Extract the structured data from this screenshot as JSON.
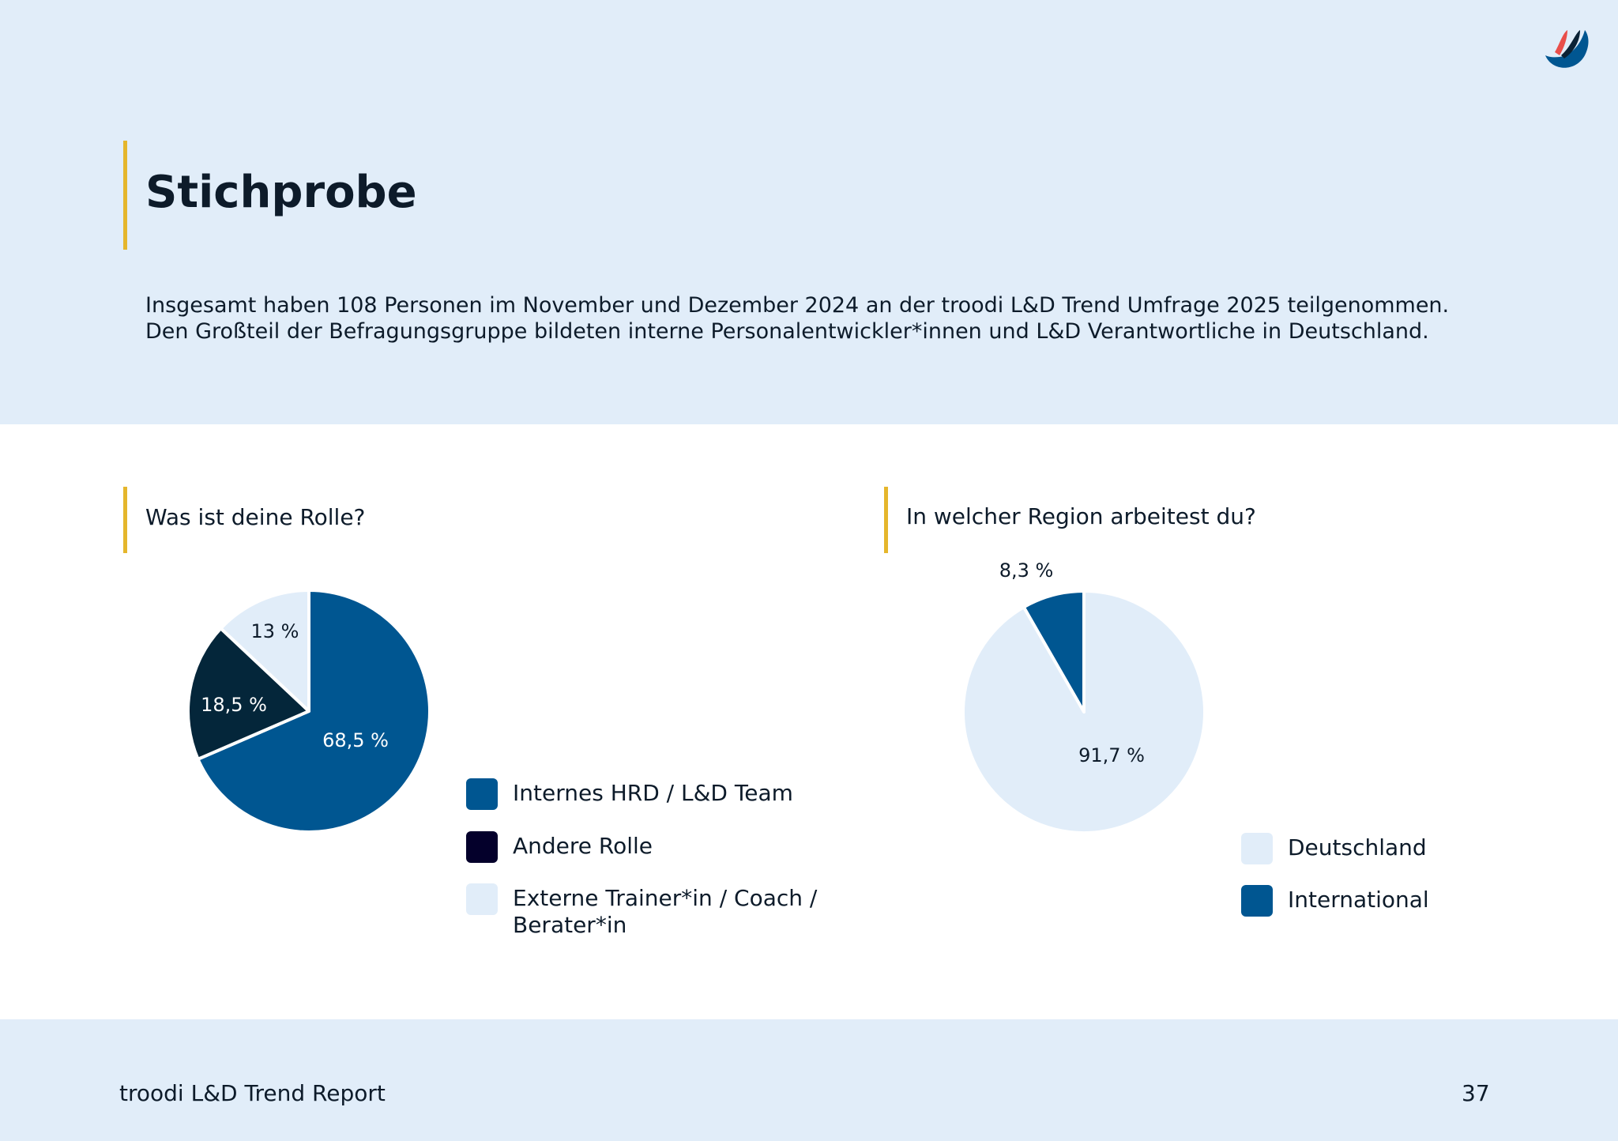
{
  "header": {
    "title": "Stichprobe",
    "intro_line_1": "Insgesamt haben 108 Personen im November und Dezember 2024 an der troodi L&D Trend Umfrage 2025 teilgenommen.",
    "intro_line_2": "Den Großteil der Befragungsgruppe bildeten interne Personalentwickler*innen und L&D Verantwortliche in Deutschland."
  },
  "logo": {
    "icon": "troodi-logo-icon",
    "colors": [
      "#005691",
      "#0b2235",
      "#e94e4a"
    ]
  },
  "chart_data": [
    {
      "type": "pie",
      "title": "Was ist deine Rolle?",
      "unit": "%",
      "slices": [
        {
          "label": "Internes HRD / L&D Team",
          "value": 68.5,
          "display": "68,5 %",
          "color": "#005691"
        },
        {
          "label": "Andere Rolle",
          "value": 18.5,
          "display": "18,5 %",
          "color": "#04263a"
        },
        {
          "label": "Externe Trainer*in / Coach / Berater*in",
          "value": 13,
          "display": "13 %",
          "color": "#e1edf9"
        }
      ],
      "legend_swatch_colors": [
        "#005691",
        "#04002b",
        "#e1edf9"
      ],
      "legend": [
        "Internes HRD / L&D Team",
        "Andere Rolle",
        "Externe Trainer*in / Coach /",
        "Berater*in"
      ]
    },
    {
      "type": "pie",
      "title": "In welcher Region arbeitest du?",
      "unit": "%",
      "slices": [
        {
          "label": "International",
          "value": 8.3,
          "display": "8,3 %",
          "color": "#005691"
        },
        {
          "label": "Deutschland",
          "value": 91.7,
          "display": "91,7 %",
          "color": "#e1edf9"
        }
      ],
      "legend": [
        "Deutschland",
        "International"
      ]
    }
  ],
  "footer": {
    "report_title": "troodi L&D Trend Report",
    "page_number": "37"
  }
}
